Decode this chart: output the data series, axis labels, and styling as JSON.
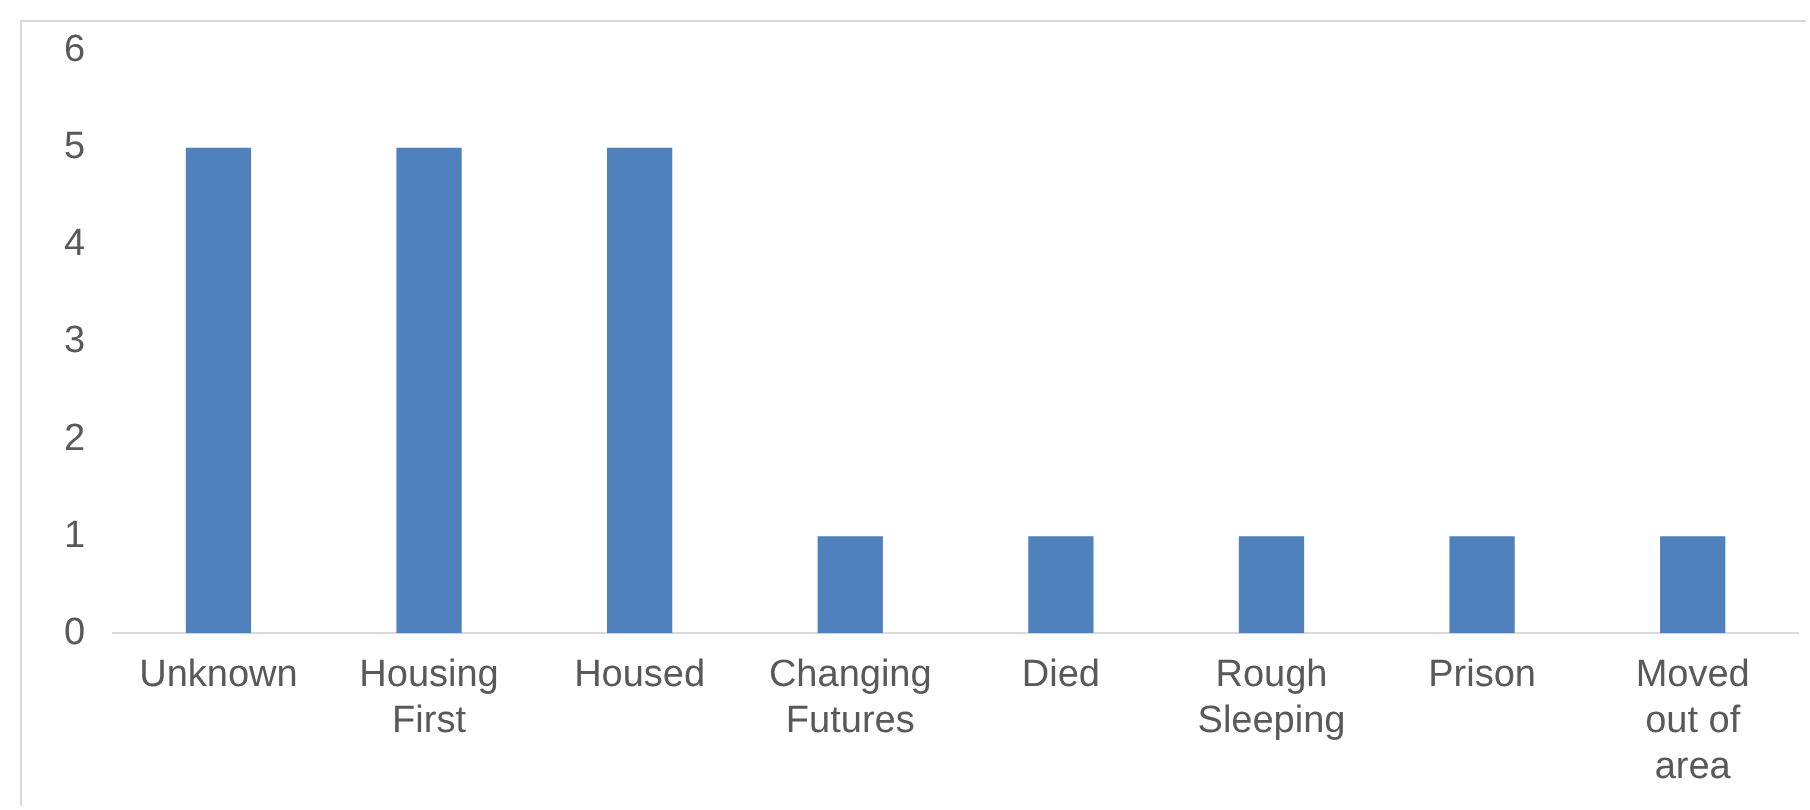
{
  "chart_data": {
    "type": "bar",
    "categories": [
      "Unknown",
      "Housing First",
      "Housed",
      "Changing Futures",
      "Died",
      "Rough Sleeping",
      "Prison",
      "Moved out of area"
    ],
    "values": [
      5,
      5,
      5,
      1,
      1,
      1,
      1,
      1
    ],
    "color": "#4f81bd",
    "ylim": [
      0,
      6
    ],
    "yticks": [
      0,
      1,
      2,
      3,
      4,
      5,
      6
    ],
    "grid": false,
    "legend": false
  }
}
